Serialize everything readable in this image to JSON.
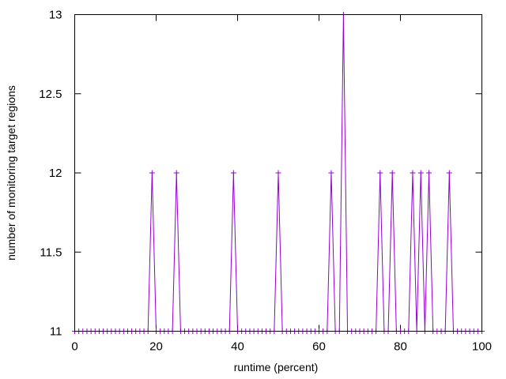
{
  "chart_data": {
    "type": "line",
    "title": "",
    "xlabel": "runtime (percent)",
    "ylabel": "number of monitoring target regions",
    "xlim": [
      0,
      100
    ],
    "ylim": [
      11,
      13
    ],
    "xticks": [
      0,
      20,
      40,
      60,
      80,
      100
    ],
    "yticks": [
      11,
      11.5,
      12,
      12.5,
      13
    ],
    "xtick_labels": [
      "0",
      "20",
      "40",
      "60",
      "80",
      "100"
    ],
    "ytick_labels": [
      "11",
      "11.5",
      "12",
      "12.5",
      "13"
    ],
    "grid": false,
    "legend": "none",
    "marker": "plus",
    "series_color": "#9400d3",
    "series": [
      {
        "x": [
          0,
          1,
          2,
          3,
          4,
          5,
          6,
          7,
          8,
          9,
          10,
          11,
          12,
          13,
          14,
          15,
          16,
          17,
          18,
          19,
          20,
          21,
          22,
          23,
          24,
          25,
          26,
          27,
          28,
          29,
          30,
          31,
          32,
          33,
          34,
          35,
          36,
          37,
          38,
          39,
          40,
          41,
          42,
          43,
          44,
          45,
          46,
          47,
          48,
          49,
          50,
          51,
          52,
          53,
          54,
          55,
          56,
          57,
          58,
          59,
          60,
          61,
          62,
          63,
          64,
          65,
          66,
          67,
          68,
          69,
          70,
          71,
          72,
          73,
          74,
          75,
          76,
          77,
          78,
          79,
          80,
          81,
          82,
          83,
          84,
          85,
          86,
          87,
          88,
          89,
          90,
          91,
          92,
          93,
          94,
          95,
          96,
          97,
          98,
          99,
          100
        ],
        "values": [
          11,
          11,
          11,
          11,
          11,
          11,
          11,
          11,
          11,
          11,
          11,
          11,
          11,
          11,
          11,
          11,
          11,
          11,
          11,
          12,
          11,
          11,
          11,
          11,
          11,
          12,
          11,
          11,
          11,
          11,
          11,
          11,
          11,
          11,
          11,
          11,
          11,
          11,
          11,
          12,
          11,
          11,
          11,
          11,
          11,
          11,
          11,
          11,
          11,
          11,
          12,
          11,
          11,
          11,
          11,
          11,
          11,
          11,
          11,
          11,
          11,
          11,
          11,
          12,
          11,
          11,
          13,
          11,
          11,
          11,
          11,
          11,
          11,
          11,
          11,
          12,
          11,
          11,
          12,
          11,
          11,
          11,
          11,
          12,
          11,
          12,
          11,
          12,
          11,
          11,
          11,
          11,
          12,
          11,
          11,
          11,
          11,
          11,
          11,
          11,
          11
        ]
      }
    ]
  }
}
